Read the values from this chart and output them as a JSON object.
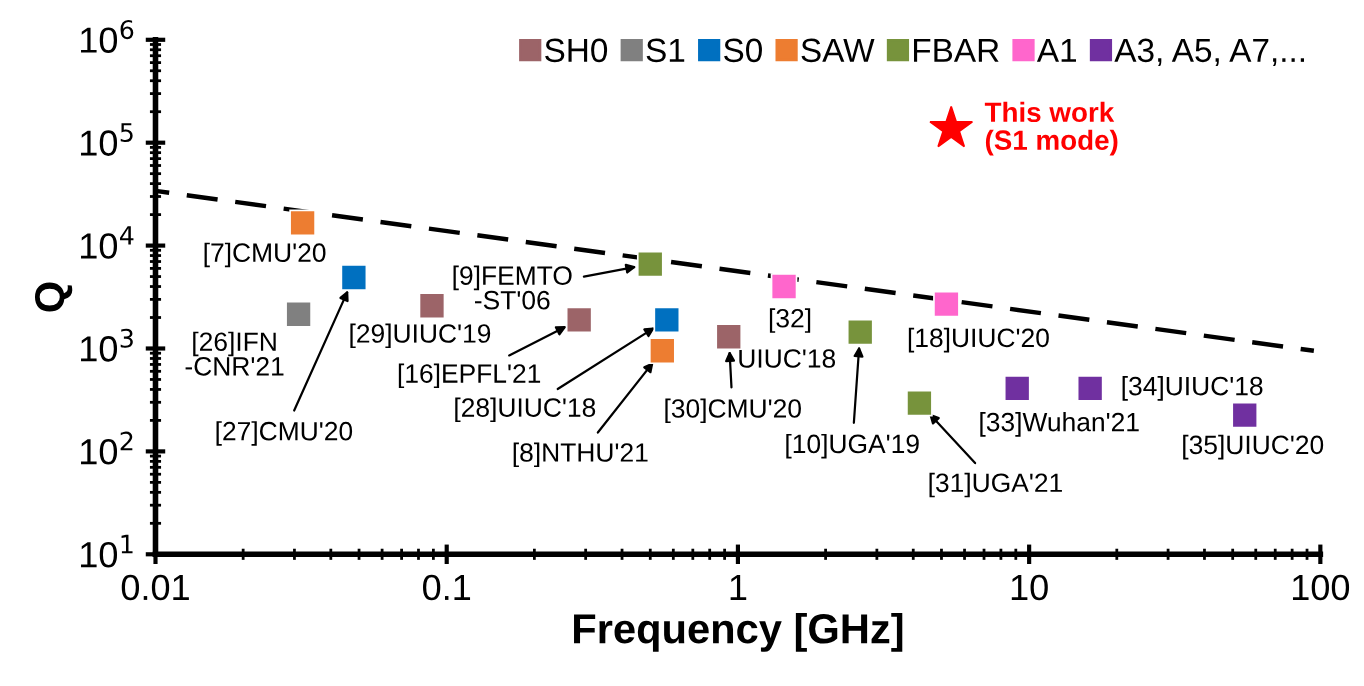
{
  "chart_data": {
    "type": "scatter",
    "xlabel": "Frequency [GHz]",
    "ylabel": "Q",
    "log": "xy",
    "marker": "square",
    "legend": "top right",
    "grid": false,
    "xlim": [
      0.01,
      100
    ],
    "xticks": [
      0.01,
      0.1,
      1,
      10,
      100
    ],
    "ylim": [
      10,
      1000000
    ],
    "yticks": [
      {
        "value": 10,
        "label": "10$^{1}$"
      },
      {
        "value": 100,
        "label": "10$^{2}$"
      },
      {
        "value": 1000,
        "label": "10$^{3}$"
      },
      {
        "value": 10000,
        "label": "10$^{4}$"
      },
      {
        "value": 100000,
        "label": "10$^{5}$"
      },
      {
        "value": 1000000,
        "label": "10$^{6}$"
      }
    ],
    "series": [
      {
        "name": "SH0",
        "color": "#9c6468",
        "x": [
          0.089,
          0.285,
          0.93
        ],
        "values": [
          2600,
          1900,
          1300
        ]
      },
      {
        "name": "S1",
        "color": "#808080",
        "x": [
          0.031
        ],
        "values": [
          2150
        ]
      },
      {
        "name": "S0",
        "color": "#0070c0",
        "x": [
          0.048,
          0.57
        ],
        "values": [
          4900,
          1900
        ]
      },
      {
        "name": "SAW",
        "color": "#ed7d31",
        "x": [
          0.032,
          0.55
        ],
        "values": [
          16600,
          950
        ]
      },
      {
        "name": "FBAR",
        "color": "#77933c",
        "x": [
          0.5,
          2.63,
          4.2
        ],
        "values": [
          6600,
          1440,
          295
        ]
      },
      {
        "name": "A1",
        "color": "#ff66cc",
        "x": [
          1.44,
          5.2
        ],
        "values": [
          4000,
          2700
        ]
      },
      {
        "name": "A3, A5, A7,...",
        "color": "#7030a0",
        "x": [
          9.1,
          16.2,
          55
        ],
        "values": [
          410,
          410,
          225
        ]
      },
      {
        "name": "This work\n(S1 mode)",
        "color": "#ff0000",
        "marker": "star",
        "x": [
          5.4
        ],
        "values": [
          137000
        ]
      },
      {
        "type": "line",
        "color": "#000000",
        "marker": "none",
        "line_style": "dashed",
        "x": [
          0.01,
          95
        ],
        "values": [
          34000,
          950
        ]
      }
    ],
    "annotations": [
      {
        "text": "[7]CMU'20",
        "x": 0.032,
        "y": 16600
      },
      {
        "text": "[26]IFN\n-CNR'21",
        "x": 0.031,
        "y": 2150
      },
      {
        "text": "[27]CMU'20",
        "x": 0.048,
        "y": 4900
      },
      {
        "text": "[29]UIUC'19",
        "x": 0.089,
        "y": 2600
      },
      {
        "text": "[9]FEMTO\n-ST'06",
        "x": 0.5,
        "y": 6600
      },
      {
        "text": "[16]EPFL'21",
        "x": 0.285,
        "y": 1900
      },
      {
        "text": "[28]UIUC'18",
        "x": 0.57,
        "y": 1900
      },
      {
        "text": "[8]NTHU'21",
        "x": 0.55,
        "y": 950
      },
      {
        "text": "[30]CMU'20",
        "x": 0.93,
        "y": 1300
      },
      {
        "text": "UIUC'18",
        "x": 0.93,
        "y": 1300
      },
      {
        "text": "[32]",
        "x": 1.44,
        "y": 4000
      },
      {
        "text": "[18]UIUC'20",
        "x": 5.2,
        "y": 2700
      },
      {
        "text": "[10]UGA'19",
        "x": 2.63,
        "y": 1440
      },
      {
        "text": "[31]UGA'21",
        "x": 4.2,
        "y": 295
      },
      {
        "text": "[33]Wuhan'21",
        "x": 9.1,
        "y": 410
      },
      {
        "text": "[34]UIUC'18",
        "x": 16.2,
        "y": 410
      },
      {
        "text": "[35]UIUC'20",
        "x": 55,
        "y": 225
      }
    ]
  }
}
